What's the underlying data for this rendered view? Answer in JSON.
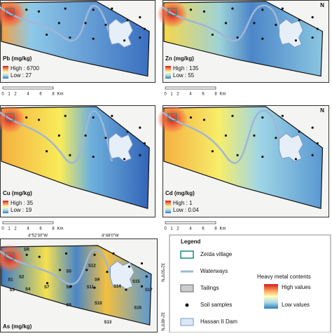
{
  "panels": [
    {
      "title": "Pb (mg/kg)",
      "high": "High : 6700",
      "low": "Low : 27"
    },
    {
      "title": "Zn (mg/kg)",
      "high": "High : 135",
      "low": "Low : 55"
    },
    {
      "title": "Cu (mg/kg)",
      "high": "High : 35",
      "low": "Low : 19"
    },
    {
      "title": "Cd (mg/kg)",
      "high": "High : 1",
      "low": "Low : 0.04"
    },
    {
      "title": "As (mg/kg)"
    }
  ],
  "scale_bar": [
    "0",
    "1",
    "2",
    "4",
    "6",
    "8",
    "Km"
  ],
  "north": "N",
  "coordinates": {
    "lon": [
      "4°52'30\"W",
      "4°48'0\"W"
    ],
    "lat": [
      "32°50'0\"N",
      "32°48'0\"N"
    ]
  },
  "samples": [
    "SR",
    "S1",
    "S2",
    "S3",
    "S4",
    "S5",
    "S6",
    "S7",
    "S8",
    "S9",
    "S10",
    "S11",
    "S12",
    "S13",
    "S14",
    "S15",
    "S16",
    "S17"
  ],
  "legend": {
    "title": "Legend",
    "items": [
      "Zeïda village",
      "Waterways",
      "Tailings",
      "Soil samples",
      "Hassan II Dam"
    ],
    "scale_title": "Heavy metal contents",
    "high": "High values",
    "low": "Low values"
  }
}
